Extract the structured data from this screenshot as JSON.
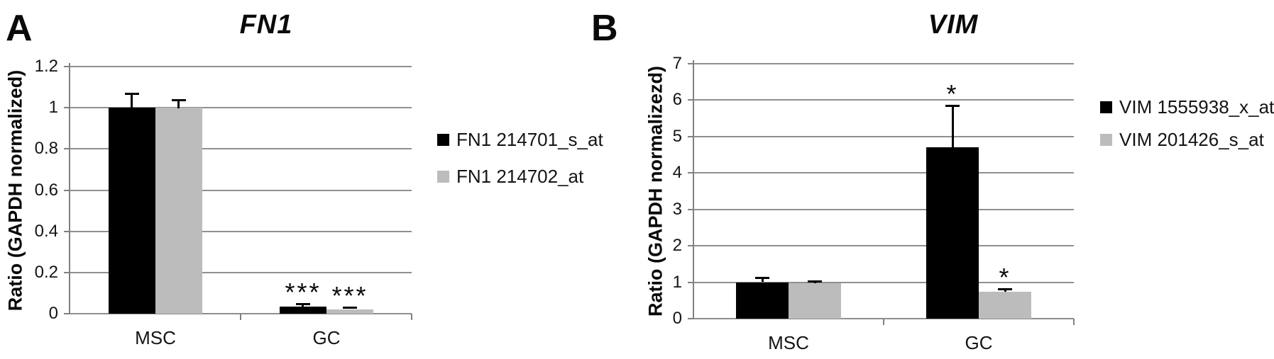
{
  "figure": {
    "description": "Two-panel qPCR bar figure comparing MSC and GC expression ratios"
  },
  "chart_data": [
    {
      "panel_label": "A",
      "type": "bar",
      "title": "FN1",
      "xlabel": "",
      "ylabel": "Ratio (GAPDH normalized)",
      "categories": [
        "MSC",
        "GC"
      ],
      "series": [
        {
          "name": "FN1 214701_s_at",
          "color": "#000000",
          "values": [
            1.0,
            0.035
          ],
          "errors_plus": [
            0.07,
            0.013
          ],
          "significance": [
            null,
            "***"
          ]
        },
        {
          "name": "FN1 214702_at",
          "color": "#bcbcbc",
          "values": [
            1.0,
            0.022
          ],
          "errors_plus": [
            0.04,
            0.008
          ],
          "significance": [
            null,
            "***"
          ]
        }
      ],
      "ylim": [
        0,
        1.2
      ],
      "yticks": [
        0,
        0.2,
        0.4,
        0.6,
        0.8,
        1,
        1.2
      ],
      "ytick_labels": [
        "0",
        "0.2",
        "0.4",
        "0.6",
        "0.8",
        "1",
        "1.2"
      ],
      "grid": true,
      "legend_position": "right"
    },
    {
      "panel_label": "B",
      "type": "bar",
      "title": "VIM",
      "xlabel": "",
      "ylabel": "Ratio (GAPDH normalizezd)",
      "categories": [
        "MSC",
        "GC"
      ],
      "series": [
        {
          "name": "VIM 1555938_x_at",
          "color": "#000000",
          "values": [
            1.0,
            4.7
          ],
          "errors_plus": [
            0.12,
            1.15
          ],
          "significance": [
            null,
            "*"
          ]
        },
        {
          "name": "VIM 201426_s_at",
          "color": "#bcbcbc",
          "values": [
            0.98,
            0.74
          ],
          "errors_plus": [
            0.05,
            0.08
          ],
          "significance": [
            null,
            "*"
          ]
        }
      ],
      "ylim": [
        0,
        7
      ],
      "yticks": [
        0,
        1,
        2,
        3,
        4,
        5,
        6,
        7
      ],
      "ytick_labels": [
        "0",
        "1",
        "2",
        "3",
        "4",
        "5",
        "6",
        "7"
      ],
      "grid": true,
      "legend_position": "right"
    }
  ]
}
